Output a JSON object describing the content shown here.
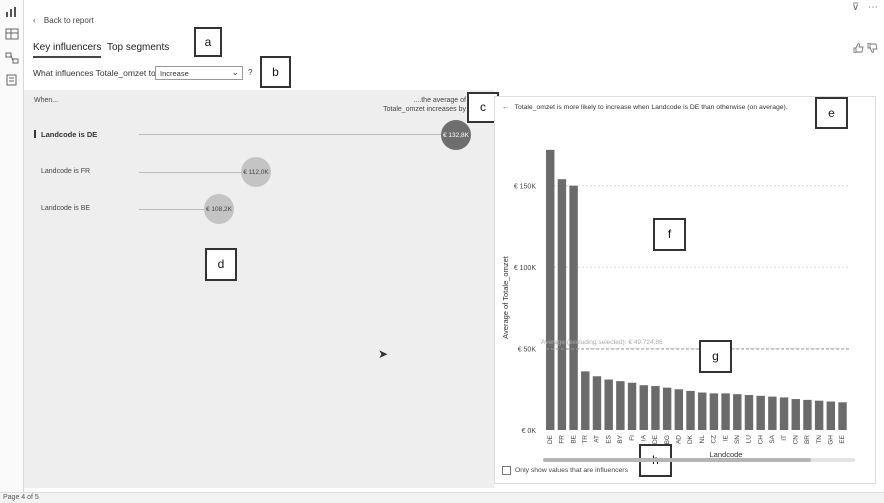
{
  "nav": {
    "back_label": "Back to report"
  },
  "tabs": [
    {
      "label": "Key influencers"
    },
    {
      "label": "Top segments"
    }
  ],
  "question": {
    "label": "What influences Totale_omzet to",
    "dropdown_value": "Increase",
    "help": "?"
  },
  "influencers": {
    "when_header": "When...",
    "avg_header_line1": "....the average of",
    "avg_header_line2": "Totale_omzet increases by",
    "items": [
      {
        "label": "Landcode is DE",
        "value": "€ 132,8K",
        "selected": true
      },
      {
        "label": "Landcode is FR",
        "value": "€ 112,0K",
        "selected": false
      },
      {
        "label": "Landcode is BE",
        "value": "€ 108,2K",
        "selected": false
      }
    ]
  },
  "explanation": "Totale_omzet is more likely to increase when Landcode is DE than otherwise (on average).",
  "annotations": {
    "a": "a",
    "b": "b",
    "c": "c",
    "d": "d",
    "e": "e",
    "f": "f",
    "g": "g",
    "h": "h"
  },
  "checkbox_label": "Only show values that are influencers",
  "status": {
    "page": "Page 4 of 5"
  },
  "colors": {
    "bar": "#6b6b6b",
    "bubble_selected": "#6e6e6e",
    "bubble": "#c4c4c4",
    "panel_bg": "#eeeeee"
  },
  "icons": [
    "back-arrow-icon",
    "filter-icon",
    "more-options-icon",
    "thumbs-up-icon",
    "thumbs-down-icon",
    "chevron-down-icon"
  ],
  "chart_data": {
    "type": "bar",
    "xlabel": "Landcode",
    "ylabel": "Average of Totale_omzet",
    "categories": [
      "DE",
      "FR",
      "BE",
      "TR",
      "AT",
      "ES",
      "BY",
      "FI",
      "IA",
      "DE",
      "BG",
      "AD",
      "DK",
      "NL",
      "CZ",
      "IE",
      "SN",
      "LU",
      "CH",
      "SA",
      "IT",
      "CN",
      "BR",
      "TN",
      "GH",
      "EE"
    ],
    "values": [
      172000,
      154000,
      150000,
      36000,
      33000,
      31000,
      30000,
      29000,
      27500,
      27000,
      26000,
      25000,
      24000,
      23000,
      22500,
      22500,
      22000,
      21500,
      21000,
      20500,
      20000,
      19000,
      18500,
      18000,
      17500,
      17000
    ],
    "yticks": [
      "€ 0K",
      "€ 50K",
      "€ 100K",
      "€ 150K"
    ],
    "ylim": [
      0,
      175000
    ],
    "average_line": {
      "value": 49724.86,
      "label": "Average (excluding selected): € 49.724,86"
    }
  }
}
